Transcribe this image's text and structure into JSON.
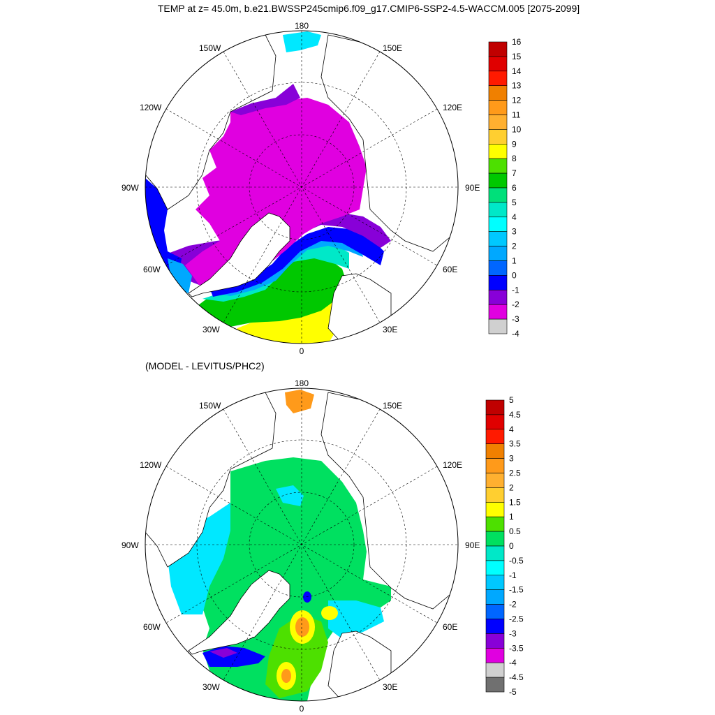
{
  "title": "TEMP at z=  45.0m, b.e21.BWSSP245cmip6.f09_g17.CMIP6-SSP2-4.5-WACCM.005 [2075-2099]",
  "subtitle": "(MODEL - LEVITUS/PHC2)",
  "longitude_labels": {
    "top": "180",
    "bottom": "0",
    "left": "90W",
    "right": "90E",
    "upper_left_1": "150W",
    "upper_left_2": "120W",
    "upper_right_1": "150E",
    "upper_right_2": "120E",
    "lower_left_1": "60W",
    "lower_left_2": "30W",
    "lower_right_1": "60E",
    "lower_right_2": "30E"
  },
  "colorbar_top": {
    "labels": [
      "16",
      "15",
      "14",
      "13",
      "12",
      "11",
      "10",
      "9",
      "8",
      "7",
      "6",
      "5",
      "4",
      "3",
      "2",
      "1",
      "0",
      "-1",
      "-2",
      "-3",
      "-4"
    ],
    "colors": [
      "#c00000",
      "#e00000",
      "#ff1a00",
      "#f08000",
      "#ff9a1a",
      "#ffb030",
      "#ffcf30",
      "#ffff00",
      "#4de000",
      "#00c800",
      "#00e07a",
      "#00e8c8",
      "#00ffff",
      "#00c8ff",
      "#00a8ff",
      "#0066ff",
      "#0000ff",
      "#8800d8",
      "#e000e0",
      "#d0d0d0",
      "#707070"
    ]
  },
  "colorbar_bottom": {
    "labels": [
      "5",
      "4.5",
      "4",
      "3.5",
      "3",
      "2.5",
      "2",
      "1.5",
      "1",
      "0.5",
      "0",
      "-0.5",
      "-1",
      "-1.5",
      "-2",
      "-2.5",
      "-3",
      "-3.5",
      "-4",
      "-4.5",
      "-5"
    ],
    "colors": [
      "#c00000",
      "#e00000",
      "#ff1a00",
      "#f08000",
      "#ff9a1a",
      "#ffb030",
      "#ffcf30",
      "#ffff00",
      "#4de000",
      "#00e060",
      "#00e8c8",
      "#00ffff",
      "#00c8ff",
      "#00a8ff",
      "#0066ff",
      "#0000ff",
      "#8800d8",
      "#e000e0",
      "#d0d0d0",
      "#707070"
    ]
  },
  "colors": {
    "frozen_interior": "#e000e0",
    "shelf_purple": "#8800d8",
    "positive_anomaly": "#00e060",
    "land": "#ffffff"
  }
}
